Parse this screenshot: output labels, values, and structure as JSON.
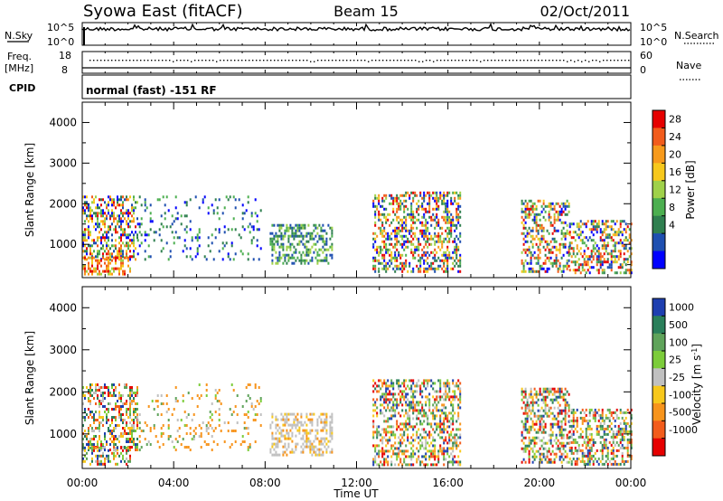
{
  "header": {
    "station": "Syowa East (fitACF)",
    "beam": "Beam 15",
    "date": "02/Oct/2011"
  },
  "top_panels": {
    "nsky_label": "N.Sky",
    "nsky_ticks": [
      "10^5",
      "10^0"
    ],
    "nsearch_label": "N.Search",
    "nsearch_ticks": [
      "10^5",
      "10^0"
    ],
    "freq_label": "Freq.",
    "freq_unit": "[MHz]",
    "freq_ticks": [
      "18",
      "8"
    ],
    "nave_label": "Nave",
    "nave_ticks": [
      "60",
      "0"
    ],
    "cpid_label": "CPID",
    "cpid_text": "normal (fast) -151 RF"
  },
  "chart_data": [
    {
      "type": "heatmap",
      "name": "power",
      "ylabel": "Slant Range [km]",
      "yticks": [
        "4000",
        "3000",
        "2000",
        "1000"
      ],
      "ylim": [
        180,
        4500
      ],
      "x_tick_labels": [
        "00:00",
        "04:00",
        "08:00",
        "12:00",
        "16:00",
        "20:00",
        "00:00"
      ],
      "xlim_hours": [
        0,
        24
      ],
      "colorbar": {
        "label": "Power [dB]",
        "ticks": [
          "28",
          "24",
          "20",
          "16",
          "12",
          "8",
          "4"
        ],
        "colors": [
          "#0000ff",
          "#1e4fb0",
          "#2f7f4f",
          "#4caf50",
          "#9fd14a",
          "#f7c81c",
          "#f79a1c",
          "#f25c1c",
          "#e60000"
        ]
      },
      "regions": [
        {
          "t0": 0.0,
          "t1": 2.4,
          "r0": 600,
          "r1": 2200,
          "level": "mixed"
        },
        {
          "t0": 0.0,
          "t1": 2.1,
          "r0": 250,
          "r1": 700,
          "level": "high"
        },
        {
          "t0": 2.4,
          "t1": 7.8,
          "r0": 600,
          "r1": 2200,
          "level": "sparse"
        },
        {
          "t0": 8.2,
          "t1": 10.9,
          "r0": 500,
          "r1": 1500,
          "level": "medium"
        },
        {
          "t0": 12.7,
          "t1": 16.5,
          "r0": 300,
          "r1": 2300,
          "level": "mixed"
        },
        {
          "t0": 19.2,
          "t1": 21.3,
          "r0": 300,
          "r1": 2100,
          "level": "mixed"
        },
        {
          "t0": 21.3,
          "t1": 24.0,
          "r0": 300,
          "r1": 1600,
          "level": "mixed"
        }
      ]
    },
    {
      "type": "heatmap",
      "name": "velocity",
      "ylabel": "Slant Range [km]",
      "yticks": [
        "4000",
        "3000",
        "2000",
        "1000"
      ],
      "ylim": [
        180,
        4500
      ],
      "x_tick_labels": [
        "00:00",
        "04:00",
        "08:00",
        "12:00",
        "16:00",
        "20:00",
        "00:00"
      ],
      "xlabel": "Time UT",
      "xlim_hours": [
        0,
        24
      ],
      "colorbar": {
        "label": "Velocity [m s^-1]",
        "ticks": [
          "1000",
          "500",
          "100",
          "25",
          "-25",
          "-100",
          "-500",
          "-1000"
        ],
        "colors": [
          "#1e3fb0",
          "#2a7f5a",
          "#5fa35a",
          "#7ccc3a",
          "#c0c0c0",
          "#f7c81c",
          "#f7941c",
          "#f25c1c",
          "#e60000"
        ]
      },
      "regions": [
        {
          "t0": 0.0,
          "t1": 2.4,
          "r0": 600,
          "r1": 2200,
          "level": "mixed"
        },
        {
          "t0": 0.0,
          "t1": 2.1,
          "r0": 250,
          "r1": 700,
          "level": "mixed"
        },
        {
          "t0": 2.4,
          "t1": 7.8,
          "r0": 600,
          "r1": 2200,
          "level": "sparse"
        },
        {
          "t0": 8.2,
          "t1": 10.9,
          "r0": 500,
          "r1": 1500,
          "level": "near-zero"
        },
        {
          "t0": 12.7,
          "t1": 16.5,
          "r0": 300,
          "r1": 2300,
          "level": "mixed"
        },
        {
          "t0": 19.2,
          "t1": 21.3,
          "r0": 300,
          "r1": 2100,
          "level": "mixed"
        },
        {
          "t0": 21.3,
          "t1": 24.0,
          "r0": 300,
          "r1": 1600,
          "level": "mixed"
        }
      ]
    }
  ]
}
